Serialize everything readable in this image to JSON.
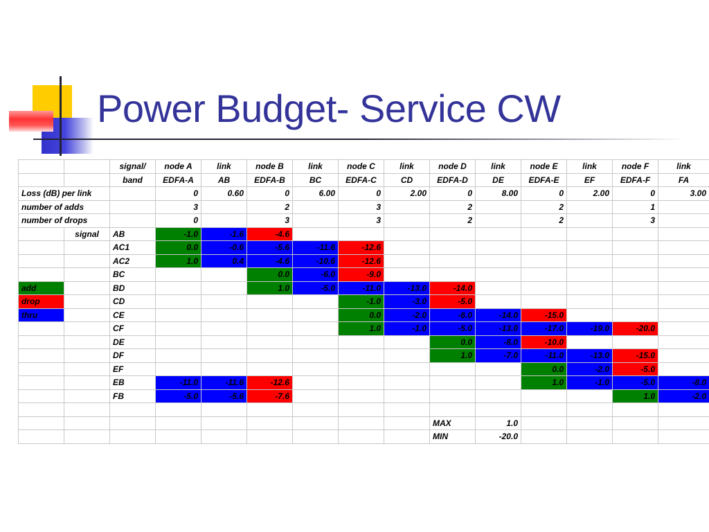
{
  "slide": {
    "title": "Power Budget- Service CW"
  },
  "colors": {
    "add": "#008000",
    "drop": "#ff0000",
    "thru": "#0000ff",
    "title": "#333399"
  },
  "table": {
    "header1": [
      "",
      "",
      "signal/",
      "node A",
      "link",
      "node B",
      "link",
      "node C",
      "link",
      "node D",
      "link",
      "node E",
      "link",
      "node F",
      "link"
    ],
    "header2": [
      "",
      "",
      "band",
      "EDFA-A",
      "AB",
      "EDFA-B",
      "BC",
      "EDFA-C",
      "CD",
      "EDFA-D",
      "DE",
      "EDFA-E",
      "EF",
      "EDFA-F",
      "FA"
    ],
    "loss_row": {
      "label": "Loss (dB) per link",
      "values": [
        "0",
        "0.60",
        "0",
        "6.00",
        "0",
        "2.00",
        "0",
        "8.00",
        "0",
        "2.00",
        "0",
        "3.00"
      ]
    },
    "adds_row": {
      "label": "number of adds",
      "values": [
        "3",
        "",
        "2",
        "",
        "3",
        "",
        "2",
        "",
        "2",
        "",
        "1",
        ""
      ]
    },
    "drops_row": {
      "label": "number of drops",
      "values": [
        "0",
        "",
        "3",
        "",
        "3",
        "",
        "2",
        "",
        "2",
        "",
        "3",
        ""
      ]
    },
    "signal_label": "signal",
    "legend": [
      {
        "label": "add",
        "type": "add"
      },
      {
        "label": "drop",
        "type": "drop"
      },
      {
        "label": "thru",
        "type": "thru"
      }
    ],
    "signals": [
      {
        "band": "AB",
        "cells": [
          [
            "-1.0",
            "add"
          ],
          [
            "-1.6",
            "thru"
          ],
          [
            "-4.6",
            "drop"
          ],
          null,
          null,
          null,
          null,
          null,
          null,
          null,
          null,
          null
        ]
      },
      {
        "band": "AC1",
        "cells": [
          [
            "0.0",
            "add"
          ],
          [
            "-0.6",
            "thru"
          ],
          [
            "-5.6",
            "thru"
          ],
          [
            "-11.6",
            "thru"
          ],
          [
            "-12.6",
            "drop"
          ],
          null,
          null,
          null,
          null,
          null,
          null,
          null
        ]
      },
      {
        "band": "AC2",
        "cells": [
          [
            "1.0",
            "add"
          ],
          [
            "0.4",
            "thru"
          ],
          [
            "-4.6",
            "thru"
          ],
          [
            "-10.6",
            "thru"
          ],
          [
            "-12.6",
            "drop"
          ],
          null,
          null,
          null,
          null,
          null,
          null,
          null
        ]
      },
      {
        "band": "BC",
        "cells": [
          null,
          null,
          [
            "0.0",
            "add"
          ],
          [
            "-6.0",
            "thru"
          ],
          [
            "-9.0",
            "drop"
          ],
          null,
          null,
          null,
          null,
          null,
          null,
          null
        ]
      },
      {
        "band": "BD",
        "cells": [
          null,
          null,
          [
            "1.0",
            "add"
          ],
          [
            "-5.0",
            "thru"
          ],
          [
            "-11.0",
            "thru"
          ],
          [
            "-13.0",
            "thru"
          ],
          [
            "-14.0",
            "drop"
          ],
          null,
          null,
          null,
          null,
          null
        ]
      },
      {
        "band": "CD",
        "cells": [
          null,
          null,
          null,
          null,
          [
            "-1.0",
            "add"
          ],
          [
            "-3.0",
            "thru"
          ],
          [
            "-5.0",
            "drop"
          ],
          null,
          null,
          null,
          null,
          null
        ]
      },
      {
        "band": "CE",
        "cells": [
          null,
          null,
          null,
          null,
          [
            "0.0",
            "add"
          ],
          [
            "-2.0",
            "thru"
          ],
          [
            "-6.0",
            "thru"
          ],
          [
            "-14.0",
            "thru"
          ],
          [
            "-15.0",
            "drop"
          ],
          null,
          null,
          null
        ]
      },
      {
        "band": "CF",
        "cells": [
          null,
          null,
          null,
          null,
          [
            "1.0",
            "add"
          ],
          [
            "-1.0",
            "thru"
          ],
          [
            "-5.0",
            "thru"
          ],
          [
            "-13.0",
            "thru"
          ],
          [
            "-17.0",
            "thru"
          ],
          [
            "-19.0",
            "thru"
          ],
          [
            "-20.0",
            "drop"
          ],
          null
        ]
      },
      {
        "band": "DE",
        "cells": [
          null,
          null,
          null,
          null,
          null,
          null,
          [
            "0.0",
            "add"
          ],
          [
            "-8.0",
            "thru"
          ],
          [
            "-10.0",
            "drop"
          ],
          null,
          null,
          null
        ]
      },
      {
        "band": "DF",
        "cells": [
          null,
          null,
          null,
          null,
          null,
          null,
          [
            "1.0",
            "add"
          ],
          [
            "-7.0",
            "thru"
          ],
          [
            "-11.0",
            "thru"
          ],
          [
            "-13.0",
            "thru"
          ],
          [
            "-15.0",
            "drop"
          ],
          null
        ]
      },
      {
        "band": "EF",
        "cells": [
          null,
          null,
          null,
          null,
          null,
          null,
          null,
          null,
          [
            "0.0",
            "add"
          ],
          [
            "-2.0",
            "thru"
          ],
          [
            "-5.0",
            "drop"
          ],
          null
        ]
      },
      {
        "band": "EB",
        "cells": [
          [
            "-11.0",
            "thru"
          ],
          [
            "-11.6",
            "thru"
          ],
          [
            "-12.6",
            "drop"
          ],
          null,
          null,
          null,
          null,
          null,
          [
            "1.0",
            "add"
          ],
          [
            "-1.0",
            "thru"
          ],
          [
            "-5.0",
            "thru"
          ],
          [
            "-8.0",
            "thru"
          ]
        ]
      },
      {
        "band": "FB",
        "cells": [
          [
            "-5.0",
            "thru"
          ],
          [
            "-5.6",
            "thru"
          ],
          [
            "-7.6",
            "drop"
          ],
          null,
          null,
          null,
          null,
          null,
          null,
          null,
          [
            "1.0",
            "add"
          ],
          [
            "-2.0",
            "thru"
          ]
        ]
      }
    ],
    "summary": [
      {
        "label": "MAX",
        "value": "1.0"
      },
      {
        "label": "MIN",
        "value": "-20.0"
      }
    ]
  }
}
